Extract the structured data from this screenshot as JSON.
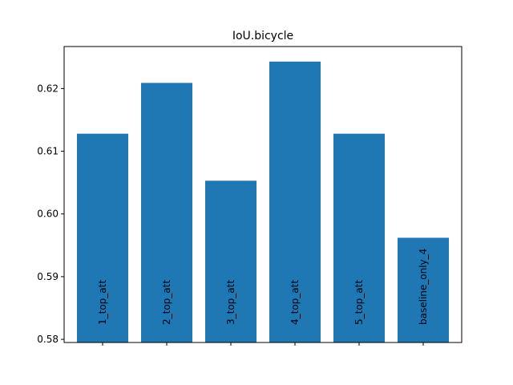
{
  "chart_data": {
    "type": "bar",
    "title": "IoU.bicycle",
    "xlabel": "",
    "ylabel": "",
    "categories": [
      "1_top_att",
      "2_top_att",
      "3_top_att",
      "4_top_att",
      "5_top_att",
      "baseline_only_4"
    ],
    "values": [
      0.6128,
      0.6209,
      0.6053,
      0.6243,
      0.6128,
      0.5962
    ],
    "ylim": [
      0.5795,
      0.6267
    ],
    "yticks": [
      0.58,
      0.59,
      0.6,
      0.61,
      0.62
    ],
    "ytick_labels": [
      "0.58",
      "0.59",
      "0.60",
      "0.61",
      "0.62"
    ],
    "bar_color": "#1f77b4",
    "grid": false,
    "legend": "none"
  }
}
